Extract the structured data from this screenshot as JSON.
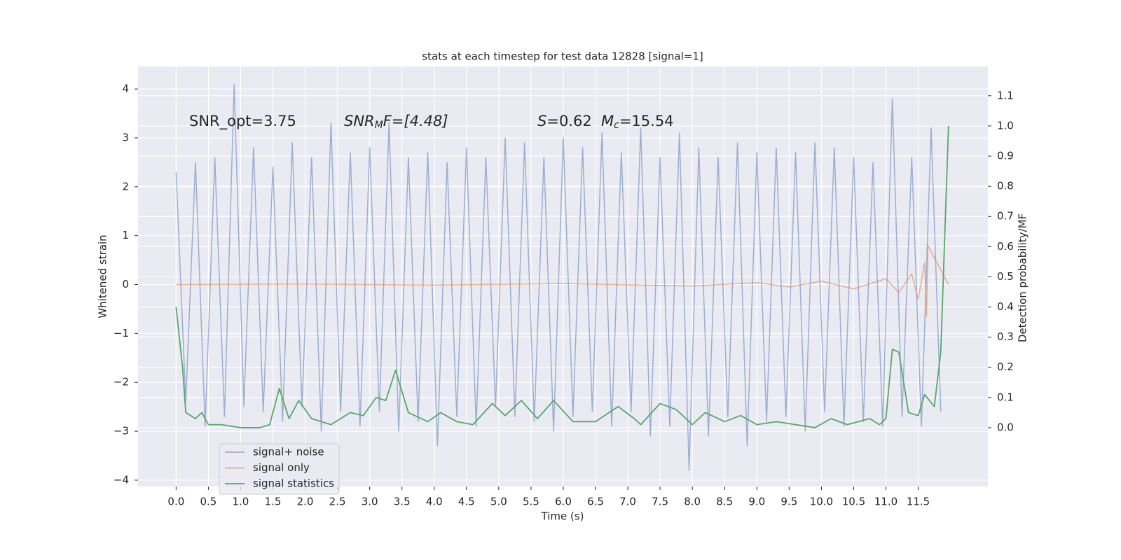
{
  "chart_data": {
    "type": "line",
    "title": "stats at each timestep for test data 12828 [signal=1]",
    "xlabel": "Time (s)",
    "ylabel": "Whitened strain",
    "y2label": "Detection probability/MF",
    "annotations": {
      "snr_opt": "SNR_opt=3.75",
      "snr_mf": [
        "SNR",
        "M",
        "F=[4.48]"
      ],
      "s": [
        "S",
        "=0.62"
      ],
      "mc": [
        "M",
        "c",
        "=15.54"
      ]
    },
    "xlim": [
      -0.59,
      12.58
    ],
    "xticks": [
      {
        "value": 0,
        "label": "0.0"
      },
      0.5,
      {
        "value": 1,
        "label": "1.0"
      },
      1.5,
      {
        "value": 2,
        "label": "2.0"
      },
      2.5,
      {
        "value": 3,
        "label": "3.0"
      },
      3.5,
      {
        "value": 4,
        "label": "4.0"
      },
      4.5,
      {
        "value": 5,
        "label": "5.0"
      },
      5.5,
      {
        "value": 6,
        "label": "6.0"
      },
      6.5,
      {
        "value": 7,
        "label": "7.0"
      },
      7.5,
      {
        "value": 8,
        "label": "8.0"
      },
      8.5,
      {
        "value": 9,
        "label": "9.0"
      },
      9.5,
      {
        "value": 10,
        "label": "10.0"
      },
      10.5,
      {
        "value": 11,
        "label": "11.0"
      },
      11.5
    ],
    "ylim": [
      -4.13,
      4.46
    ],
    "yticks": [
      {
        "value": -4,
        "label": "−4"
      },
      {
        "value": -3,
        "label": "−3"
      },
      {
        "value": -2,
        "label": "−2"
      },
      {
        "value": -1,
        "label": "−1"
      },
      0,
      1,
      2,
      3,
      4
    ],
    "y2lim": [
      -0.195,
      1.197
    ],
    "y2ticks": [
      {
        "value": 0,
        "label": "0.0"
      },
      0.1,
      0.2,
      0.3,
      0.4,
      0.5,
      0.6,
      0.7,
      0.8,
      0.9,
      {
        "value": 1,
        "label": "1.0"
      },
      1.1
    ],
    "grid": true,
    "legend": "lower left",
    "series": [
      {
        "name": "signal+ noise",
        "color": "#4c72b0",
        "opacity": 0.5,
        "x": [
          0,
          0.15,
          0.3,
          0.45,
          0.6,
          0.75,
          0.9,
          1.05,
          1.2,
          1.35,
          1.5,
          1.65,
          1.8,
          1.95,
          2.1,
          2.25,
          2.4,
          2.55,
          2.7,
          2.85,
          3,
          3.15,
          3.3,
          3.45,
          3.6,
          3.75,
          3.9,
          4.05,
          4.2,
          4.35,
          4.5,
          4.65,
          4.8,
          4.95,
          5.1,
          5.25,
          5.4,
          5.55,
          5.7,
          5.85,
          6,
          6.15,
          6.3,
          6.45,
          6.6,
          6.75,
          6.9,
          7.05,
          7.2,
          7.35,
          7.5,
          7.65,
          7.8,
          7.95,
          8.1,
          8.25,
          8.4,
          8.55,
          8.7,
          8.85,
          9,
          9.15,
          9.3,
          9.45,
          9.6,
          9.75,
          9.9,
          10.05,
          10.2,
          10.35,
          10.5,
          10.65,
          10.8,
          10.95,
          11.1,
          11.25,
          11.4,
          11.55,
          11.7,
          11.85
        ],
        "values": [
          2.3,
          -2.4,
          2.5,
          -2.9,
          2.6,
          -2.7,
          4.1,
          -2.5,
          2.8,
          -2.6,
          2.4,
          -2.8,
          2.9,
          -2.5,
          2.6,
          -3.0,
          3.3,
          -2.6,
          2.7,
          -2.9,
          2.8,
          -2.6,
          3.3,
          -3.0,
          2.6,
          -2.8,
          2.7,
          -3.3,
          2.5,
          -2.7,
          2.8,
          -2.9,
          2.6,
          -2.5,
          3.0,
          -2.7,
          2.9,
          -2.8,
          2.6,
          -3.0,
          3.0,
          -2.7,
          2.8,
          -2.6,
          3.1,
          -2.9,
          2.7,
          -2.6,
          3.2,
          -3.1,
          2.6,
          -2.9,
          3.1,
          -3.8,
          2.8,
          -3.1,
          2.6,
          -2.7,
          2.9,
          -3.3,
          2.7,
          -2.8,
          2.8,
          -2.7,
          2.7,
          -3.0,
          2.9,
          -2.6,
          2.8,
          -2.9,
          2.6,
          -2.8,
          2.5,
          -2.9,
          3.8,
          -2.7,
          2.6,
          -2.9,
          3.2,
          -2.6
        ]
      },
      {
        "name": "signal only",
        "color": "#dd8452",
        "opacity": 0.6,
        "x": [
          0,
          2,
          4,
          6,
          8,
          9,
          9.5,
          10,
          10.5,
          11,
          11.2,
          11.4,
          11.5,
          11.6,
          11.63,
          11.65,
          11.97
        ],
        "values": [
          0,
          0.01,
          -0.01,
          0.02,
          -0.03,
          0.04,
          -0.05,
          0.07,
          -0.09,
          0.12,
          -0.16,
          0.22,
          -0.3,
          0.45,
          -0.65,
          0.8,
          0
        ]
      },
      {
        "name": "signal statistics",
        "color": "#55a868",
        "opacity": 1,
        "axis": "y2",
        "x": [
          0,
          0.1,
          0.15,
          0.3,
          0.4,
          0.5,
          0.7,
          1,
          1.3,
          1.45,
          1.6,
          1.75,
          1.9,
          2.1,
          2.4,
          2.7,
          2.9,
          3.1,
          3.25,
          3.4,
          3.6,
          3.9,
          4.1,
          4.35,
          4.6,
          4.9,
          5.1,
          5.35,
          5.6,
          5.85,
          6.15,
          6.5,
          6.85,
          7.1,
          7.2,
          7.5,
          7.75,
          8,
          8.2,
          8.5,
          8.75,
          9,
          9.3,
          9.6,
          9.9,
          10.15,
          10.4,
          10.75,
          10.9,
          11,
          11.1,
          11.2,
          11.35,
          11.5,
          11.6,
          11.75,
          11.85,
          11.97
        ],
        "values": [
          0.4,
          0.2,
          0.05,
          0.03,
          0.05,
          0.01,
          0.01,
          0,
          0,
          0.01,
          0.13,
          0.03,
          0.09,
          0.03,
          0.01,
          0.05,
          0.04,
          0.1,
          0.09,
          0.19,
          0.05,
          0.02,
          0.05,
          0.02,
          0.01,
          0.08,
          0.04,
          0.09,
          0.03,
          0.09,
          0.02,
          0.02,
          0.07,
          0.03,
          0.01,
          0.08,
          0.06,
          0.01,
          0.05,
          0.02,
          0.04,
          0.01,
          0.02,
          0.01,
          0,
          0.03,
          0.01,
          0.03,
          0.01,
          0.03,
          0.26,
          0.25,
          0.05,
          0.04,
          0.11,
          0.07,
          0.25,
          1.0
        ]
      }
    ]
  }
}
